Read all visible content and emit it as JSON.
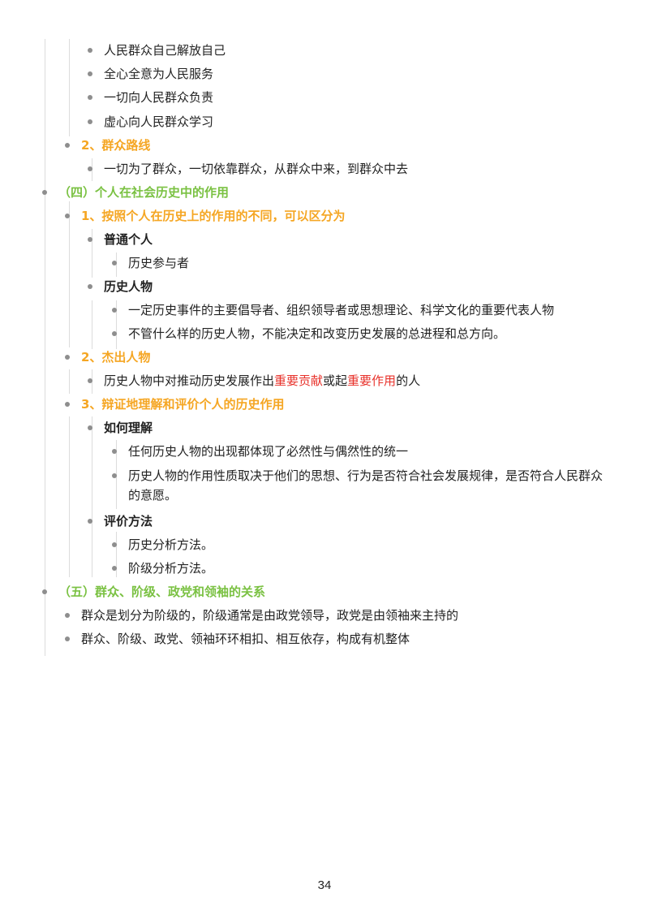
{
  "items": {
    "i0": "人民群众自己解放自己",
    "i1": "全心全意为人民服务",
    "i2": "一切向人民群众负责",
    "i3": "虚心向人民群众学习",
    "i4": "2、群众路线",
    "i5": "一切为了群众，一切依靠群众，从群众中来，到群众中去",
    "i6": "（四）个人在社会历史中的作用",
    "i7": "1、按照个人在历史上的作用的不同，可以区分为",
    "i8": "普通个人",
    "i9": "历史参与者",
    "i10": "历史人物",
    "i11": "一定历史事件的主要倡导者、组织领导者或思想理论、科学文化的重要代表人物",
    "i12": "不管什么样的历史人物，不能决定和改变历史发展的总进程和总方向。",
    "i13": "2、杰出人物",
    "i14a": "历史人物中对推动历史发展作出",
    "i14b": "重要贡献",
    "i14c": "或起",
    "i14d": "重要作用",
    "i14e": "的人",
    "i15": "3、辩证地理解和评价个人的历史作用",
    "i16": "如何理解",
    "i17": "任何历史人物的出现都体现了必然性与偶然性的统一",
    "i18": "历史人物的作用性质取决于他们的思想、行为是否符合社会发展规律，是否符合人民群众的意愿。",
    "i19": "评价方法",
    "i20": "历史分析方法。",
    "i21": "阶级分析方法。",
    "i22": "（五）群众、阶级、政党和领袖的关系",
    "i23": "群众是划分为阶级的，阶级通常是由政党领导，政党是由领袖来主持的",
    "i24": "群众、阶级、政党、领袖环环相扣、相互依存，构成有机整体"
  },
  "colors": {
    "orange_heading": "#f5a623",
    "green_heading": "#7ac142",
    "highlight_red": "#e8322b",
    "bullet_gray": "#8e8e8e"
  },
  "page_number": "34"
}
